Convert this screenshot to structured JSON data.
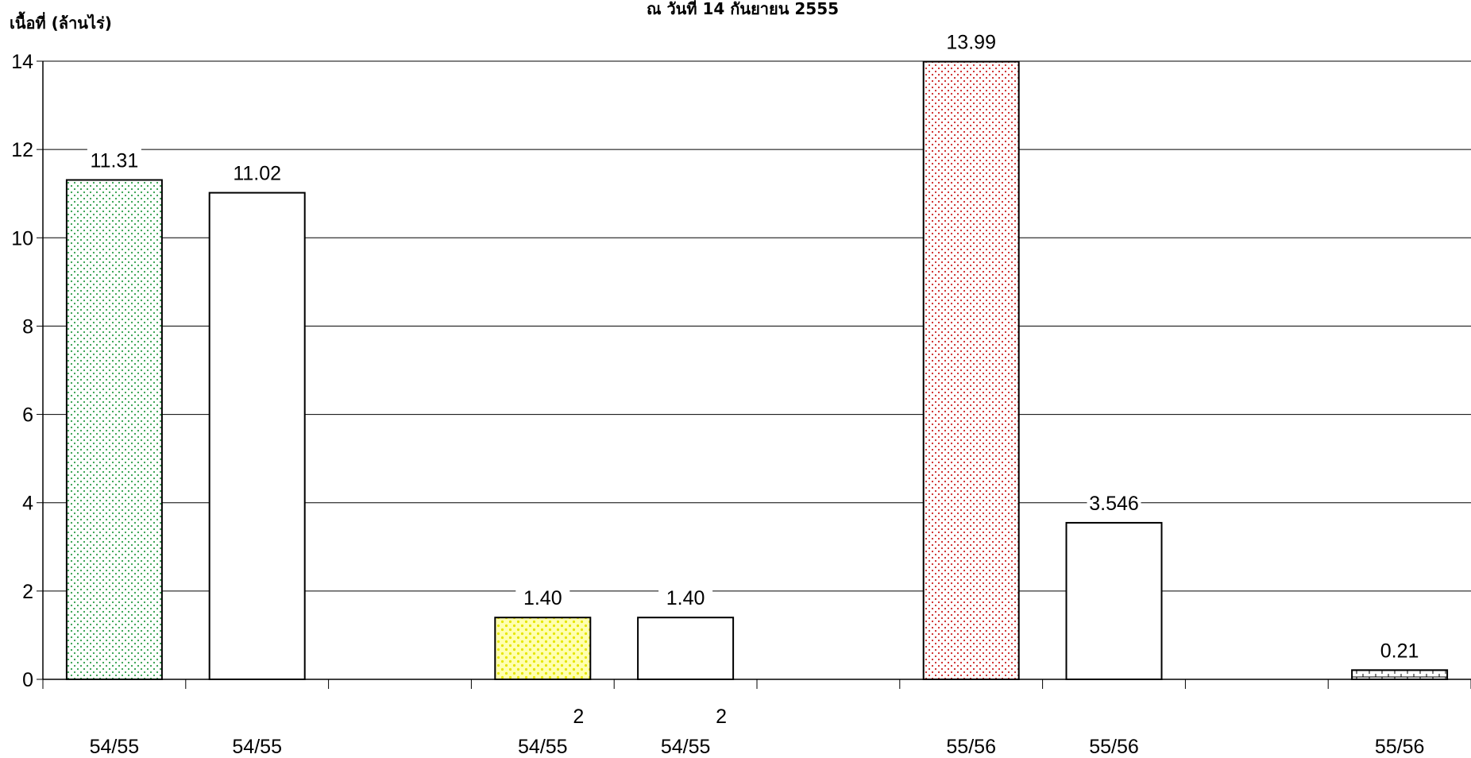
{
  "chart_data": {
    "type": "bar",
    "title": "ณ วันที่ 14 กันยายน 2555",
    "ylabel": "เนื้อที่ (ล้านไร่)",
    "ylim": [
      0,
      14
    ],
    "yticks": [
      "0",
      "2",
      "4",
      "6",
      "8",
      "10",
      "12",
      "14"
    ],
    "grid": true,
    "categories": [
      "54/55",
      "54/55",
      "",
      "54/55",
      "54/55",
      "",
      "55/56",
      "55/56",
      "",
      "55/56"
    ],
    "category_sublabels": [
      "",
      "",
      "",
      "2",
      "2",
      "",
      "",
      "",
      "",
      ""
    ],
    "values": [
      11.31,
      11.02,
      null,
      1.4,
      1.4,
      null,
      13.99,
      3.546,
      null,
      0.21
    ],
    "data_labels": [
      "11.31",
      "11.02",
      "",
      "1.40",
      "1.40",
      "",
      "13.99",
      "3.546",
      "",
      "0.21"
    ],
    "bar_fills": [
      "green-dots",
      "white",
      "",
      "yellow-dots",
      "white",
      "",
      "red-dots",
      "white",
      "",
      "brick"
    ],
    "colors": {
      "green_dots": "#2e9e4a",
      "yellow_dots": "#e6e600",
      "yellow_bg": "#ffffb0",
      "red_dots": "#cc2222",
      "brick": "#000000",
      "grid": "#000000",
      "bar_outline": "#000000"
    }
  }
}
